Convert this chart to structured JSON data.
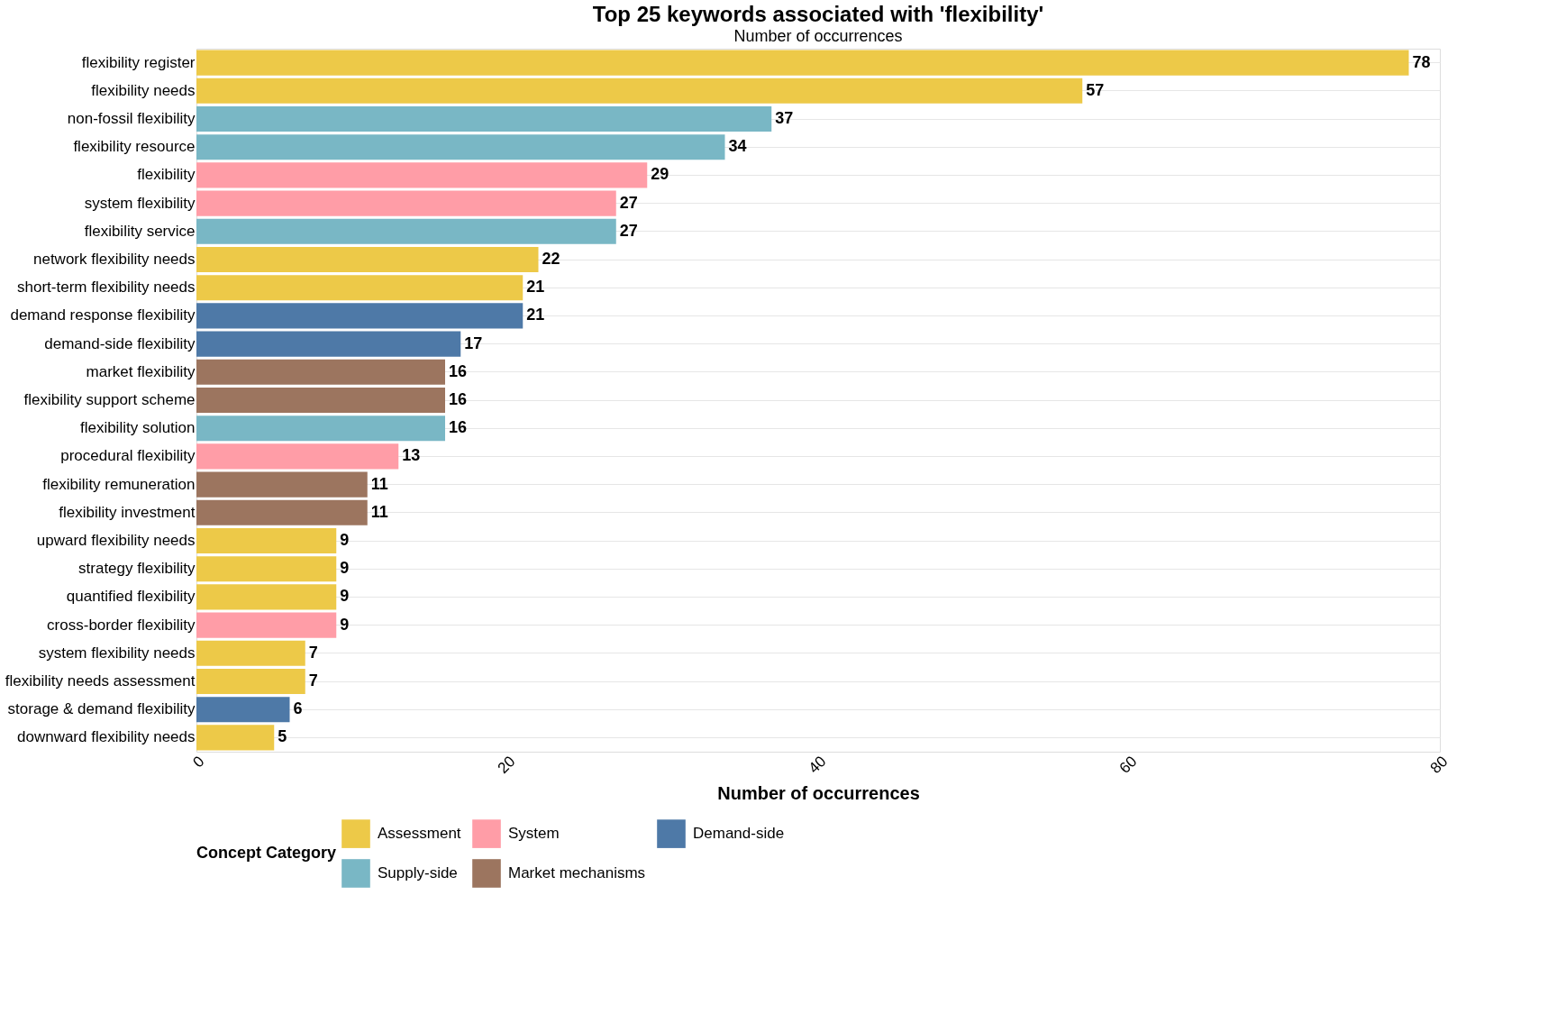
{
  "chart_data": {
    "type": "bar",
    "orientation": "horizontal",
    "title": "Top 25 keywords associated with 'flexibility'",
    "subtitle": "Number of occurrences",
    "xlabel": "Number of occurrences",
    "legend_title": "Concept Category",
    "categories": [
      "flexibility register",
      "flexibility needs",
      "non-fossil flexibility",
      "flexibility resource",
      "flexibility",
      "system flexibility",
      "flexibility service",
      "network flexibility needs",
      "short-term flexibility needs",
      "demand response flexibility",
      "demand-side flexibility",
      "market flexibility",
      "flexibility support scheme",
      "flexibility solution",
      "procedural flexibility",
      "flexibility remuneration",
      "flexibility investment",
      "upward flexibility needs",
      "strategy flexibility",
      "quantified flexibility",
      "cross-border flexibility",
      "system flexibility needs",
      "flexibility needs assessment",
      "storage & demand flexibility",
      "downward flexibility needs"
    ],
    "series": [
      {
        "name": "Assessment",
        "color": "#edc948",
        "values": [
          78,
          57,
          null,
          null,
          null,
          null,
          null,
          22,
          21,
          null,
          null,
          null,
          null,
          null,
          null,
          null,
          null,
          9,
          9,
          9,
          null,
          7,
          7,
          null,
          5
        ]
      },
      {
        "name": "System",
        "color": "#ff9da7",
        "values": [
          null,
          null,
          null,
          null,
          29,
          27,
          null,
          null,
          null,
          null,
          null,
          null,
          null,
          null,
          13,
          null,
          null,
          null,
          null,
          null,
          9,
          null,
          null,
          null,
          null
        ]
      },
      {
        "name": "Demand-side",
        "color": "#4e79a7",
        "values": [
          null,
          null,
          null,
          null,
          null,
          null,
          null,
          null,
          null,
          21,
          17,
          null,
          null,
          null,
          null,
          null,
          null,
          null,
          null,
          null,
          null,
          null,
          null,
          6,
          null
        ]
      },
      {
        "name": "Supply-side",
        "color": "#79b7c5",
        "values": [
          null,
          null,
          37,
          34,
          null,
          null,
          27,
          null,
          null,
          null,
          null,
          null,
          null,
          16,
          null,
          null,
          null,
          null,
          null,
          null,
          null,
          null,
          null,
          null,
          null
        ]
      },
      {
        "name": "Market mechanisms",
        "color": "#9c755f",
        "values": [
          null,
          null,
          null,
          null,
          null,
          null,
          null,
          null,
          null,
          null,
          null,
          16,
          16,
          null,
          null,
          11,
          11,
          null,
          null,
          null,
          null,
          null,
          null,
          null,
          null
        ]
      }
    ],
    "xlim": [
      0,
      80
    ],
    "xticks": [
      0,
      20,
      40,
      60,
      80
    ],
    "grid": "y",
    "legend": "bottom",
    "data_labels": true
  }
}
